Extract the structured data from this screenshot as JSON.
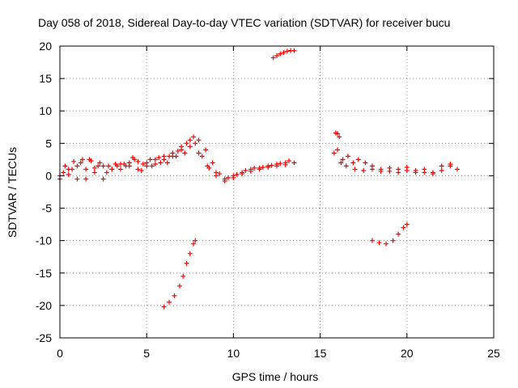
{
  "chart_data": {
    "type": "scatter",
    "title": "Day 058 of 2018, Sidereal Day-to-day VTEC variation (SDTVAR) for receiver bucu",
    "xlabel": "GPS time / hours",
    "ylabel": "SDTVAR / TECUs",
    "xlim": [
      0,
      25
    ],
    "ylim": [
      -25,
      20
    ],
    "xticks": [
      0,
      5,
      10,
      15,
      20,
      25
    ],
    "yticks": [
      -25,
      -20,
      -15,
      -10,
      -5,
      0,
      5,
      10,
      15,
      20
    ],
    "grid": true,
    "marker": "plus",
    "color": "#ff0000",
    "series": [
      {
        "name": "band-1",
        "x": [
          0.0,
          0.5,
          1.0,
          1.5,
          2.0,
          2.5,
          3.0,
          3.5,
          4.0,
          4.5,
          5.0,
          5.5,
          6.0,
          6.5,
          7.0,
          7.5,
          7.8,
          8.2,
          8.6,
          9.0,
          9.5,
          10.0,
          10.5,
          11.0,
          11.5,
          12.0,
          12.5,
          13.0,
          13.5
        ],
        "y": [
          0.0,
          1.0,
          1.5,
          1.0,
          1.2,
          1.5,
          1.0,
          1.8,
          2.0,
          2.2,
          2.0,
          2.5,
          3.0,
          3.5,
          4.5,
          5.5,
          5.0,
          3.0,
          1.2,
          0.0,
          -0.5,
          0.0,
          0.5,
          1.0,
          1.2,
          1.5,
          1.8,
          2.0,
          2.0
        ]
      },
      {
        "name": "band-2",
        "x": [
          0.3,
          0.8,
          1.3,
          1.8,
          2.3,
          2.8,
          3.3,
          3.8,
          4.3,
          4.8,
          5.3,
          5.8,
          6.3,
          6.8,
          7.3,
          7.7,
          8.0,
          8.4,
          8.8,
          9.2,
          9.7,
          10.2,
          10.7,
          11.2,
          11.7,
          12.2,
          12.7,
          13.2
        ],
        "y": [
          1.5,
          2.2,
          2.5,
          2.3,
          2.0,
          1.5,
          1.5,
          1.5,
          2.5,
          1.8,
          1.5,
          2.0,
          3.0,
          3.8,
          5.0,
          6.0,
          5.5,
          4.0,
          2.0,
          0.3,
          -0.3,
          0.2,
          0.8,
          1.2,
          1.3,
          1.6,
          1.9,
          2.3
        ]
      },
      {
        "name": "band-3",
        "x": [
          0.0,
          0.5,
          1.0,
          1.5,
          2.0,
          2.5,
          3.0,
          3.5,
          4.0,
          4.5,
          5.0,
          5.5,
          6.0,
          6.5,
          7.0,
          7.5,
          8.0,
          8.5,
          9.0,
          9.5,
          10.0,
          10.5,
          11.0,
          11.5,
          12.0,
          12.5,
          13.0
        ],
        "y": [
          -0.5,
          0.2,
          -0.5,
          -0.5,
          0.5,
          -0.5,
          1.0,
          1.0,
          1.5,
          1.0,
          1.5,
          1.8,
          2.5,
          3.0,
          4.0,
          4.5,
          3.5,
          1.5,
          0.5,
          -0.8,
          -0.3,
          0.3,
          0.7,
          1.0,
          1.3,
          1.5,
          1.7
        ]
      },
      {
        "name": "band-4",
        "x": [
          0.2,
          0.7,
          1.2,
          1.7,
          2.2,
          2.7,
          3.2,
          3.7,
          4.2,
          4.7,
          5.2,
          5.7,
          6.2,
          6.7,
          7.2
        ],
        "y": [
          0.5,
          1.0,
          2.0,
          2.5,
          1.5,
          0.5,
          1.8,
          1.8,
          2.8,
          0.8,
          2.5,
          2.8,
          2.0,
          3.0,
          3.5
        ]
      },
      {
        "name": "descent-seg",
        "x": [
          6.0,
          6.3,
          6.6,
          6.9,
          7.1,
          7.3,
          7.5,
          7.7,
          7.8
        ],
        "y": [
          -20.2,
          -19.5,
          -18.5,
          -17.0,
          -15.5,
          -13.5,
          -12.0,
          -10.5,
          -10.0
        ]
      },
      {
        "name": "high-seg",
        "x": [
          12.3,
          12.5,
          12.7,
          12.9,
          13.1,
          13.3,
          13.5
        ],
        "y": [
          18.2,
          18.5,
          18.8,
          19.0,
          19.2,
          19.3,
          19.3
        ]
      },
      {
        "name": "late-seg-1",
        "x": [
          15.9,
          16.0,
          16.1
        ],
        "y": [
          6.6,
          6.5,
          6.0
        ]
      },
      {
        "name": "late-seg-2",
        "x": [
          15.8,
          16.0,
          16.3,
          16.6,
          16.9,
          17.2,
          17.6,
          18.0,
          18.5,
          19.0,
          19.5,
          20.0,
          20.5,
          21.0,
          21.5,
          22.0,
          22.5,
          22.9
        ],
        "y": [
          3.5,
          4.0,
          2.5,
          3.0,
          2.0,
          2.5,
          2.0,
          1.5,
          1.0,
          1.2,
          1.0,
          1.3,
          0.8,
          1.0,
          0.5,
          1.5,
          1.5,
          1.0
        ]
      },
      {
        "name": "late-seg-3",
        "x": [
          16.2,
          16.5,
          17.0,
          17.5,
          18.0,
          18.5,
          19.0,
          19.5,
          20.0,
          20.5,
          21.0,
          21.5,
          22.0,
          22.5
        ],
        "y": [
          2.0,
          1.5,
          1.0,
          0.8,
          1.0,
          0.7,
          0.7,
          0.5,
          0.8,
          0.5,
          0.5,
          0.3,
          0.8,
          1.8
        ]
      },
      {
        "name": "late-seg-4",
        "x": [
          18.0,
          18.4,
          18.8,
          19.2,
          19.5,
          19.8,
          20.0
        ],
        "y": [
          -10.0,
          -10.3,
          -10.5,
          -10.0,
          -9.0,
          -8.0,
          -7.5
        ]
      }
    ]
  }
}
